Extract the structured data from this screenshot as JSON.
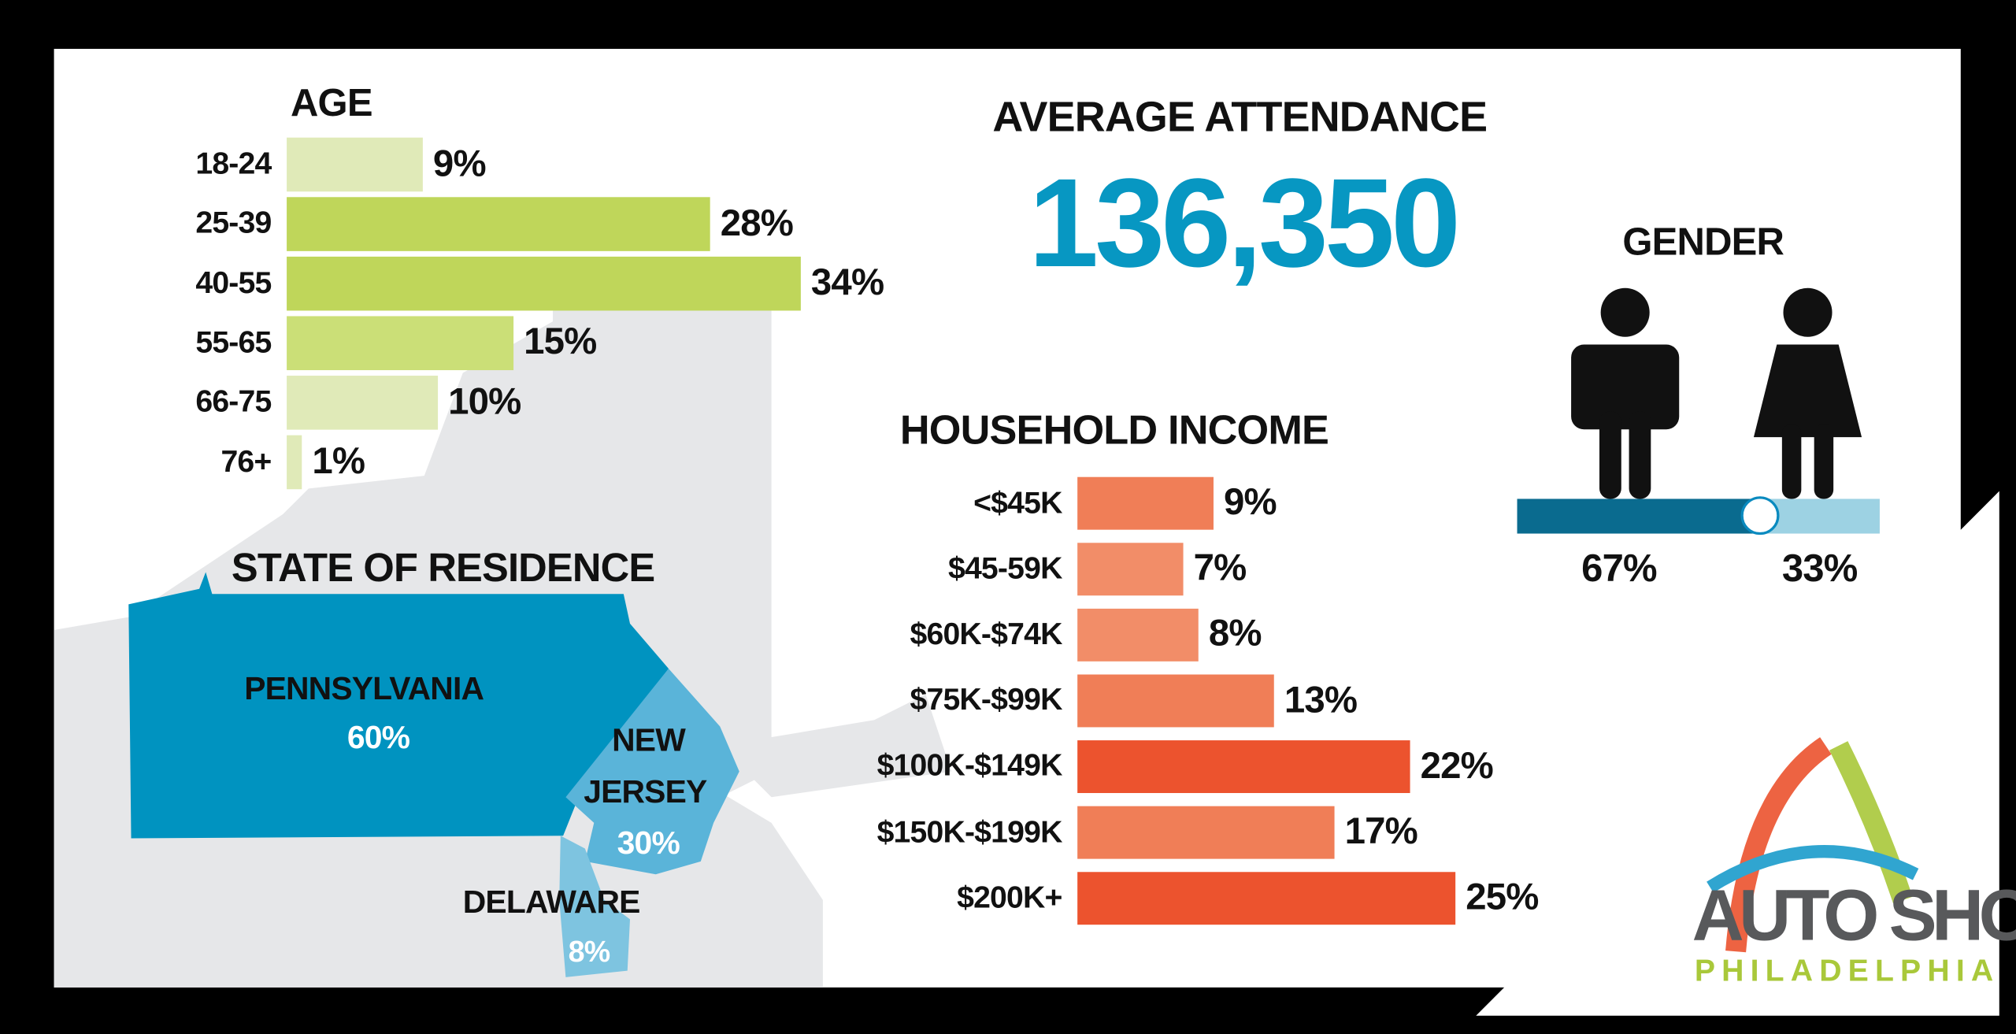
{
  "attendance": {
    "title": "AVERAGE ATTENDANCE",
    "value": "136,350",
    "color": "#0797c2"
  },
  "chart_data": [
    {
      "type": "bar",
      "orientation": "horizontal",
      "title": "AGE",
      "categories": [
        "18-24",
        "25-39",
        "40-55",
        "55-65",
        "66-75",
        "76+"
      ],
      "values": [
        9,
        28,
        34,
        15,
        10,
        1
      ],
      "labels": [
        "9%",
        "28%",
        "34%",
        "15%",
        "10%",
        "1%"
      ],
      "colors": [
        "#e0eab8",
        "#bfd65a",
        "#bfd65a",
        "#cbdf77",
        "#e0eab8",
        "#e0eab8"
      ]
    },
    {
      "type": "bar",
      "orientation": "horizontal",
      "title": "HOUSEHOLD INCOME",
      "categories": [
        "<$45K",
        "$45-59K",
        "$60K-$74K",
        "$75K-$99K",
        "$100K-$149K",
        "$150K-$199K",
        "$200K+"
      ],
      "values": [
        9,
        7,
        8,
        13,
        22,
        17,
        25
      ],
      "labels": [
        "9%",
        "7%",
        "8%",
        "13%",
        "22%",
        "17%",
        "25%"
      ],
      "colors": [
        "#f07e57",
        "#f28d68",
        "#f28d68",
        "#f07e57",
        "#ec532e",
        "#f07e57",
        "#ec532e"
      ]
    },
    {
      "type": "bar",
      "orientation": "stacked-horizontal",
      "title": "GENDER",
      "values": [
        67,
        33
      ],
      "labels": [
        "67%",
        "33%"
      ],
      "colors": [
        "#0a6b8f",
        "#9dd2e3"
      ]
    }
  ],
  "residence": {
    "title": "STATE OF RESIDENCE",
    "states": [
      {
        "name": "PENNSYLVANIA",
        "value": "60%",
        "color": "#0093c0"
      },
      {
        "name_lines": [
          "NEW",
          "JERSEY"
        ],
        "value": "30%",
        "color": "#5ab4d9"
      },
      {
        "name": "DELAWARE",
        "value": "8%",
        "color": "#7ec4e0"
      }
    ]
  },
  "icons": {
    "male": "man-icon",
    "female": "woman-icon"
  },
  "logo": {
    "line1": "AUTO SHOW",
    "line2": "PHILADELPHIA"
  }
}
